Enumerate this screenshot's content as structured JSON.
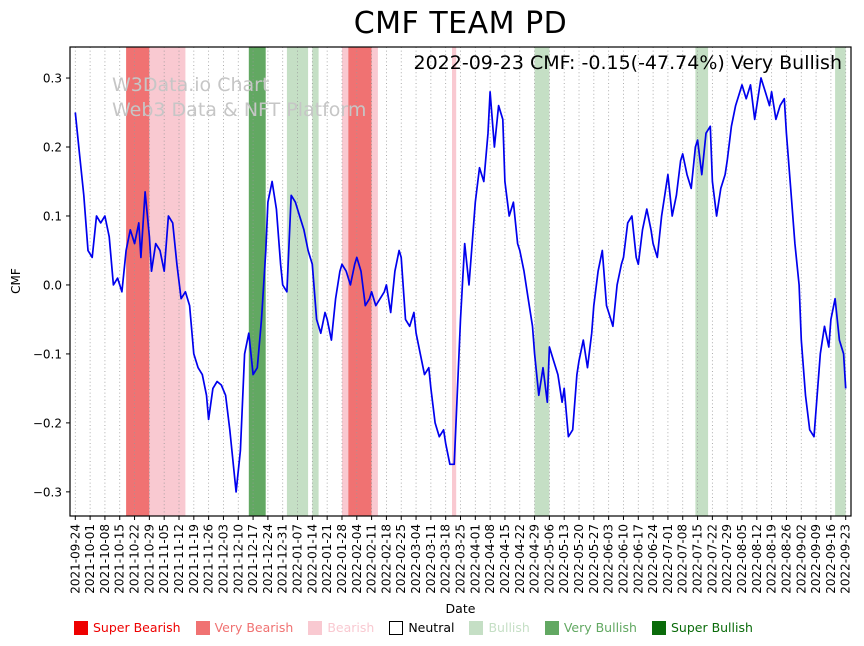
{
  "title": "CMF TEAM PD",
  "annotation": "2022-09-23 CMF: -0.15(-47.74%) Very Bullish",
  "watermark": {
    "line1": "W3Data.io Chart",
    "line2": "Web3 Data & NFT Platform"
  },
  "colors": {
    "super_bearish": "#ee0000",
    "very_bearish": "#f07272",
    "bearish": "#f9c9d1",
    "neutral": "#ffffff",
    "bullish": "#c5dfc5",
    "very_bullish": "#62a862",
    "super_bullish": "#0a6b0a",
    "line": "#0000ee",
    "grid": "#999999",
    "watermark_text": "#c6c6c6"
  },
  "legend": {
    "items": [
      {
        "key": "super_bearish",
        "label": "Super Bearish"
      },
      {
        "key": "very_bearish",
        "label": "Very Bearish"
      },
      {
        "key": "bearish",
        "label": "Bearish"
      },
      {
        "key": "neutral",
        "label": "Neutral"
      },
      {
        "key": "bullish",
        "label": "Bullish"
      },
      {
        "key": "very_bullish",
        "label": "Very Bullish"
      },
      {
        "key": "super_bullish",
        "label": "Super Bullish"
      }
    ]
  },
  "chart_data": {
    "type": "line",
    "title": "CMF TEAM PD",
    "xlabel": "Date",
    "ylabel": "CMF",
    "ylim": [
      -0.335,
      0.345
    ],
    "yticks": [
      -0.3,
      -0.2,
      -0.1,
      0,
      0.1,
      0.2,
      0.3
    ],
    "grid": "vertical-dotted",
    "legend_position": "bottom",
    "x_start_date": "2021-09-24",
    "x_tick_interval_days": 7,
    "x_tick_labels": [
      "2021-09-24",
      "2021-10-01",
      "2021-10-08",
      "2021-10-15",
      "2021-10-22",
      "2021-10-29",
      "2021-11-05",
      "2021-11-12",
      "2021-11-19",
      "2021-11-26",
      "2021-12-03",
      "2021-12-10",
      "2021-12-17",
      "2021-12-24",
      "2021-12-31",
      "2022-01-07",
      "2022-01-14",
      "2022-01-21",
      "2022-01-28",
      "2022-02-04",
      "2022-02-11",
      "2022-02-18",
      "2022-02-25",
      "2022-03-04",
      "2022-03-11",
      "2022-03-18",
      "2022-03-25",
      "2022-04-01",
      "2022-04-08",
      "2022-04-15",
      "2022-04-22",
      "2022-04-29",
      "2022-05-06",
      "2022-05-13",
      "2022-05-20",
      "2022-05-27",
      "2022-06-03",
      "2022-06-10",
      "2022-06-17",
      "2022-06-24",
      "2022-07-01",
      "2022-07-08",
      "2022-07-15",
      "2022-07-22",
      "2022-07-29",
      "2022-08-05",
      "2022-08-12",
      "2022-08-19",
      "2022-08-26",
      "2022-09-02",
      "2022-09-09",
      "2022-09-16",
      "2022-09-23"
    ],
    "series": [
      {
        "name": "CMF",
        "color": "#0000ee",
        "points": [
          [
            0,
            0.25
          ],
          [
            2,
            0.19
          ],
          [
            4,
            0.13
          ],
          [
            6,
            0.05
          ],
          [
            8,
            0.04
          ],
          [
            10,
            0.1
          ],
          [
            12,
            0.09
          ],
          [
            14,
            0.1
          ],
          [
            16,
            0.07
          ],
          [
            18,
            0
          ],
          [
            20,
            0.01
          ],
          [
            22,
            -0.01
          ],
          [
            24,
            0.05
          ],
          [
            26,
            0.08
          ],
          [
            28,
            0.06
          ],
          [
            30,
            0.09
          ],
          [
            31,
            0.04
          ],
          [
            33,
            0.135
          ],
          [
            35,
            0.07
          ],
          [
            36,
            0.02
          ],
          [
            38,
            0.06
          ],
          [
            40,
            0.05
          ],
          [
            42,
            0.02
          ],
          [
            44,
            0.1
          ],
          [
            46,
            0.09
          ],
          [
            48,
            0.03
          ],
          [
            50,
            -0.02
          ],
          [
            52,
            -0.01
          ],
          [
            54,
            -0.03
          ],
          [
            56,
            -0.1
          ],
          [
            58,
            -0.12
          ],
          [
            60,
            -0.13
          ],
          [
            62,
            -0.16
          ],
          [
            63,
            -0.195
          ],
          [
            65,
            -0.15
          ],
          [
            67,
            -0.14
          ],
          [
            69,
            -0.145
          ],
          [
            71,
            -0.16
          ],
          [
            73,
            -0.21
          ],
          [
            75,
            -0.27
          ],
          [
            76,
            -0.3
          ],
          [
            78,
            -0.24
          ],
          [
            80,
            -0.1
          ],
          [
            82,
            -0.07
          ],
          [
            84,
            -0.13
          ],
          [
            86,
            -0.12
          ],
          [
            88,
            -0.05
          ],
          [
            90,
            0.05
          ],
          [
            91,
            0.12
          ],
          [
            93,
            0.15
          ],
          [
            95,
            0.11
          ],
          [
            97,
            0.03
          ],
          [
            98,
            0
          ],
          [
            100,
            -0.01
          ],
          [
            102,
            0.13
          ],
          [
            104,
            0.12
          ],
          [
            106,
            0.1
          ],
          [
            108,
            0.08
          ],
          [
            110,
            0.05
          ],
          [
            112,
            0.03
          ],
          [
            114,
            -0.05
          ],
          [
            116,
            -0.07
          ],
          [
            118,
            -0.04
          ],
          [
            119,
            -0.05
          ],
          [
            121,
            -0.08
          ],
          [
            123,
            -0.02
          ],
          [
            125,
            0.02
          ],
          [
            126,
            0.03
          ],
          [
            128,
            0.02
          ],
          [
            130,
            0
          ],
          [
            132,
            0.03
          ],
          [
            133,
            0.04
          ],
          [
            135,
            0.02
          ],
          [
            137,
            -0.03
          ],
          [
            139,
            -0.02
          ],
          [
            140,
            -0.01
          ],
          [
            142,
            -0.03
          ],
          [
            144,
            -0.02
          ],
          [
            146,
            -0.01
          ],
          [
            147,
            0
          ],
          [
            149,
            -0.04
          ],
          [
            151,
            0.02
          ],
          [
            153,
            0.05
          ],
          [
            154,
            0.04
          ],
          [
            156,
            -0.05
          ],
          [
            158,
            -0.06
          ],
          [
            160,
            -0.04
          ],
          [
            161,
            -0.07
          ],
          [
            163,
            -0.1
          ],
          [
            165,
            -0.13
          ],
          [
            167,
            -0.12
          ],
          [
            168,
            -0.15
          ],
          [
            170,
            -0.2
          ],
          [
            172,
            -0.22
          ],
          [
            174,
            -0.21
          ],
          [
            175,
            -0.23
          ],
          [
            177,
            -0.26
          ],
          [
            179,
            -0.26
          ],
          [
            181,
            -0.12
          ],
          [
            182,
            -0.05
          ],
          [
            184,
            0.06
          ],
          [
            186,
            0
          ],
          [
            188,
            0.08
          ],
          [
            189,
            0.12
          ],
          [
            191,
            0.17
          ],
          [
            193,
            0.15
          ],
          [
            195,
            0.22
          ],
          [
            196,
            0.28
          ],
          [
            198,
            0.2
          ],
          [
            200,
            0.26
          ],
          [
            202,
            0.24
          ],
          [
            203,
            0.15
          ],
          [
            205,
            0.1
          ],
          [
            207,
            0.12
          ],
          [
            209,
            0.06
          ],
          [
            210,
            0.05
          ],
          [
            212,
            0.02
          ],
          [
            214,
            -0.02
          ],
          [
            216,
            -0.06
          ],
          [
            217,
            -0.1
          ],
          [
            219,
            -0.16
          ],
          [
            221,
            -0.12
          ],
          [
            223,
            -0.17
          ],
          [
            224,
            -0.09
          ],
          [
            226,
            -0.11
          ],
          [
            228,
            -0.13
          ],
          [
            230,
            -0.17
          ],
          [
            231,
            -0.15
          ],
          [
            233,
            -0.22
          ],
          [
            235,
            -0.21
          ],
          [
            237,
            -0.13
          ],
          [
            238,
            -0.11
          ],
          [
            240,
            -0.08
          ],
          [
            242,
            -0.12
          ],
          [
            244,
            -0.07
          ],
          [
            245,
            -0.03
          ],
          [
            247,
            0.02
          ],
          [
            249,
            0.05
          ],
          [
            251,
            -0.03
          ],
          [
            252,
            -0.04
          ],
          [
            254,
            -0.06
          ],
          [
            256,
            0
          ],
          [
            258,
            0.03
          ],
          [
            259,
            0.04
          ],
          [
            261,
            0.09
          ],
          [
            263,
            0.1
          ],
          [
            265,
            0.04
          ],
          [
            266,
            0.03
          ],
          [
            268,
            0.08
          ],
          [
            270,
            0.11
          ],
          [
            272,
            0.08
          ],
          [
            273,
            0.06
          ],
          [
            275,
            0.04
          ],
          [
            277,
            0.1
          ],
          [
            279,
            0.14
          ],
          [
            280,
            0.16
          ],
          [
            282,
            0.1
          ],
          [
            284,
            0.13
          ],
          [
            286,
            0.18
          ],
          [
            287,
            0.19
          ],
          [
            289,
            0.16
          ],
          [
            291,
            0.14
          ],
          [
            293,
            0.2
          ],
          [
            294,
            0.21
          ],
          [
            296,
            0.16
          ],
          [
            298,
            0.22
          ],
          [
            300,
            0.23
          ],
          [
            301,
            0.15
          ],
          [
            303,
            0.1
          ],
          [
            305,
            0.14
          ],
          [
            307,
            0.16
          ],
          [
            308,
            0.18
          ],
          [
            310,
            0.23
          ],
          [
            312,
            0.26
          ],
          [
            314,
            0.28
          ],
          [
            315,
            0.29
          ],
          [
            317,
            0.27
          ],
          [
            319,
            0.29
          ],
          [
            321,
            0.24
          ],
          [
            322,
            0.26
          ],
          [
            324,
            0.3
          ],
          [
            326,
            0.28
          ],
          [
            328,
            0.26
          ],
          [
            329,
            0.28
          ],
          [
            331,
            0.24
          ],
          [
            333,
            0.26
          ],
          [
            335,
            0.27
          ],
          [
            336,
            0.22
          ],
          [
            338,
            0.14
          ],
          [
            340,
            0.06
          ],
          [
            342,
            0
          ],
          [
            343,
            -0.08
          ],
          [
            345,
            -0.16
          ],
          [
            347,
            -0.21
          ],
          [
            349,
            -0.22
          ],
          [
            350,
            -0.18
          ],
          [
            352,
            -0.1
          ],
          [
            354,
            -0.06
          ],
          [
            356,
            -0.09
          ],
          [
            357,
            -0.05
          ],
          [
            359,
            -0.02
          ],
          [
            361,
            -0.08
          ],
          [
            363,
            -0.1
          ],
          [
            364,
            -0.15
          ]
        ]
      }
    ],
    "bands": [
      {
        "from": "2021-10-18",
        "to": "2021-10-29",
        "level": "very_bearish"
      },
      {
        "from": "2021-10-29",
        "to": "2021-11-15",
        "level": "bearish"
      },
      {
        "from": "2021-12-15",
        "to": "2021-12-23",
        "level": "very_bullish"
      },
      {
        "from": "2022-01-02",
        "to": "2022-01-12",
        "level": "bullish"
      },
      {
        "from": "2022-01-14",
        "to": "2022-01-17",
        "level": "bullish"
      },
      {
        "from": "2022-01-28",
        "to": "2022-01-31",
        "level": "bearish"
      },
      {
        "from": "2022-01-31",
        "to": "2022-02-11",
        "level": "very_bearish"
      },
      {
        "from": "2022-02-11",
        "to": "2022-02-14",
        "level": "bearish"
      },
      {
        "from": "2022-03-21",
        "to": "2022-03-23",
        "level": "bearish"
      },
      {
        "from": "2022-04-29",
        "to": "2022-05-06",
        "level": "bullish"
      },
      {
        "from": "2022-07-14",
        "to": "2022-07-20",
        "level": "bullish"
      },
      {
        "from": "2022-09-18",
        "to": "2022-09-23",
        "level": "bullish"
      }
    ]
  }
}
